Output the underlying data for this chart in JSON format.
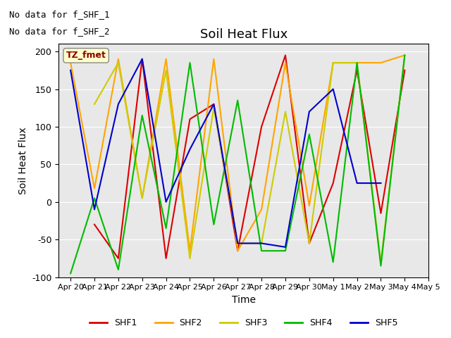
{
  "title": "Soil Heat Flux",
  "xlabel": "Time",
  "ylabel": "Soil Heat Flux",
  "ylim": [
    -100,
    210
  ],
  "yticks": [
    -100,
    -50,
    0,
    50,
    100,
    150,
    200
  ],
  "annotation_line1": "No data for f_SHF_1",
  "annotation_line2": "No data for f_SHF_2",
  "legend_label": "TZ_fmet",
  "series": {
    "SHF1": {
      "color": "#dd0000",
      "x": [
        0,
        1,
        2,
        3,
        4,
        5,
        6,
        7,
        8,
        9,
        10,
        11,
        12,
        13,
        14
      ],
      "y": [
        null,
        -30,
        -75,
        190,
        -75,
        110,
        130,
        -65,
        100,
        195,
        -55,
        25,
        175,
        -15,
        175
      ]
    },
    "SHF2": {
      "color": "#ffa500",
      "x": [
        0,
        1,
        2,
        3,
        4,
        5,
        6,
        7,
        8,
        9,
        10,
        11,
        12,
        13,
        14
      ],
      "y": [
        185,
        18,
        190,
        5,
        190,
        -65,
        190,
        -65,
        -10,
        185,
        -5,
        185,
        185,
        185,
        195
      ]
    },
    "SHF3": {
      "color": "#cccc00",
      "x": [
        0,
        1,
        2,
        3,
        4,
        5,
        6,
        7,
        8,
        9,
        10,
        11,
        12,
        13,
        14
      ],
      "y": [
        null,
        130,
        185,
        5,
        175,
        -75,
        125,
        -55,
        -55,
        120,
        -55,
        185,
        185,
        -80,
        195
      ]
    },
    "SHF4": {
      "color": "#00bb00",
      "x": [
        0,
        1,
        2,
        3,
        4,
        5,
        6,
        7,
        8,
        9,
        10,
        11,
        12,
        13,
        14
      ],
      "y": [
        -95,
        5,
        -90,
        115,
        -35,
        185,
        -30,
        135,
        -65,
        -65,
        90,
        -80,
        185,
        -85,
        195
      ]
    },
    "SHF5": {
      "color": "#0000cc",
      "x": [
        0,
        1,
        2,
        3,
        4,
        5,
        6,
        7,
        8,
        9,
        10,
        11,
        12,
        13,
        14
      ],
      "y": [
        175,
        -10,
        130,
        190,
        0,
        70,
        130,
        -55,
        -55,
        -60,
        120,
        150,
        25,
        25,
        null
      ]
    }
  },
  "xtick_positions": [
    0,
    1,
    2,
    3,
    4,
    5,
    6,
    7,
    8,
    9,
    10,
    11,
    12,
    13,
    14,
    15
  ],
  "xtick_labels": [
    "Apr 20",
    "Apr 21",
    "Apr 22",
    "Apr 23",
    "Apr 24",
    "Apr 25",
    "Apr 26",
    "Apr 27",
    "Apr 28",
    "Apr 29",
    "Apr 30",
    "May 1",
    "May 2",
    "May 3",
    "May 4",
    "May 5"
  ],
  "legend_items": [
    {
      "label": "SHF1",
      "color": "#dd0000"
    },
    {
      "label": "SHF2",
      "color": "#ffa500"
    },
    {
      "label": "SHF3",
      "color": "#cccc00"
    },
    {
      "label": "SHF4",
      "color": "#00bb00"
    },
    {
      "label": "SHF5",
      "color": "#0000cc"
    }
  ]
}
